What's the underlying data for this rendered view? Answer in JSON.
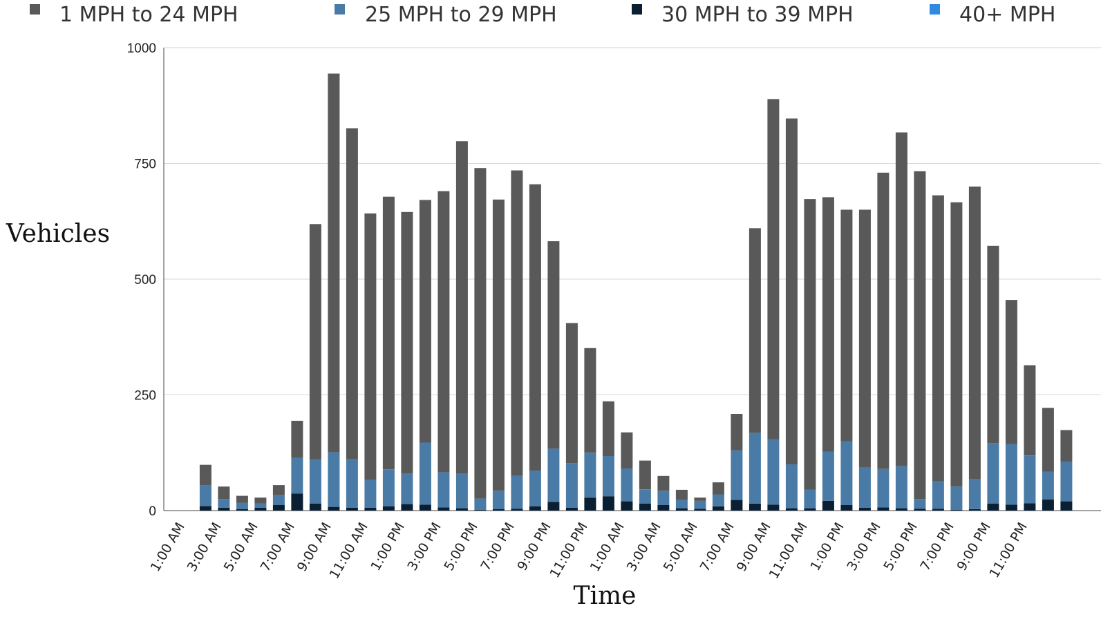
{
  "chart_data": {
    "type": "bar",
    "stacked": true,
    "xlabel": "Time",
    "ylabel": "Vehicles",
    "ylim": [
      0,
      1000
    ],
    "yticks": [
      0,
      250,
      500,
      750,
      1000
    ],
    "grid": true,
    "legend": "top",
    "categories": [
      "1:00 AM",
      "2:00 AM",
      "3:00 AM",
      "4:00 AM",
      "5:00 AM",
      "6:00 AM",
      "7:00 AM",
      "8:00 AM",
      "9:00 AM",
      "10:00 AM",
      "11:00 AM",
      "12:00 PM",
      "1:00 PM",
      "2:00 PM",
      "3:00 PM",
      "4:00 PM",
      "5:00 PM",
      "6:00 PM",
      "7:00 PM",
      "8:00 PM",
      "9:00 PM",
      "10:00 PM",
      "11:00 PM",
      "12:00 AM",
      "1:00 AM",
      "2:00 AM",
      "3:00 AM",
      "4:00 AM",
      "5:00 AM",
      "6:00 AM",
      "7:00 AM",
      "8:00 AM",
      "9:00 AM",
      "10:00 AM",
      "11:00 AM",
      "12:00 PM",
      "1:00 PM",
      "2:00 PM",
      "3:00 PM",
      "4:00 PM",
      "5:00 PM",
      "6:00 PM",
      "7:00 PM",
      "8:00 PM",
      "9:00 PM",
      "10:00 PM",
      "11:00 PM",
      "12:00 AM",
      "1:00 AM",
      "2:00 AM"
    ],
    "tick_labels": [
      "1:00 AM",
      "3:00 AM",
      "5:00 AM",
      "7:00 AM",
      "9:00 AM",
      "11:00 AM",
      "1:00 PM",
      "3:00 PM",
      "5:00 PM",
      "7:00 PM",
      "9:00 PM",
      "11:00 PM",
      "1:00 AM",
      "3:00 AM",
      "5:00 AM",
      "7:00 AM",
      "9:00 AM",
      "11:00 AM",
      "1:00 PM",
      "3:00 PM",
      "5:00 PM",
      "7:00 PM",
      "9:00 PM",
      "11:00 PM"
    ],
    "series": [
      {
        "name": "1 MPH to 24 MPH",
        "color": "#595959",
        "values": [
          0,
          0,
          44,
          27,
          15,
          13,
          22,
          80,
          509,
          818,
          715,
          576,
          589,
          565,
          524,
          607,
          718,
          714,
          629,
          660,
          619,
          448,
          303,
          226,
          118,
          78,
          62,
          32,
          21,
          7,
          26,
          79,
          442,
          735,
          747,
          628,
          550,
          500,
          557,
          640,
          721,
          708,
          618,
          614,
          632,
          426,
          311,
          195,
          138,
          68
        ]
      },
      {
        "name": "25 MPH to 29 MPH",
        "color": "#4a7ba6",
        "values": [
          0,
          0,
          45,
          19,
          14,
          9,
          21,
          77,
          95,
          118,
          105,
          60,
          80,
          66,
          134,
          76,
          75,
          24,
          40,
          71,
          77,
          115,
          96,
          97,
          87,
          71,
          31,
          31,
          19,
          17,
          26,
          107,
          153,
          141,
          95,
          40,
          106,
          138,
          87,
          83,
          91,
          21,
          59,
          50,
          65,
          131,
          131,
          103,
          60,
          86
        ]
      },
      {
        "name": "30 MPH to 39 MPH",
        "color": "#0b1f33",
        "values": [
          0,
          0,
          10,
          6,
          3,
          6,
          12,
          37,
          15,
          8,
          6,
          6,
          9,
          14,
          13,
          7,
          5,
          2,
          3,
          4,
          9,
          19,
          6,
          28,
          31,
          20,
          15,
          12,
          5,
          4,
          9,
          23,
          15,
          13,
          5,
          5,
          21,
          12,
          6,
          7,
          5,
          4,
          4,
          2,
          3,
          15,
          13,
          16,
          24,
          20
        ]
      },
      {
        "name": "40+ MPH",
        "color": "#2f8ae0",
        "values": [
          0,
          0,
          0,
          0,
          0,
          0,
          0,
          0,
          0,
          0,
          0,
          0,
          0,
          0,
          0,
          0,
          0,
          0,
          0,
          0,
          0,
          0,
          0,
          0,
          0,
          0,
          0,
          0,
          0,
          0,
          0,
          0,
          0,
          0,
          0,
          0,
          0,
          0,
          0,
          0,
          0,
          0,
          0,
          0,
          0,
          0,
          0,
          0,
          0,
          0
        ]
      }
    ]
  }
}
